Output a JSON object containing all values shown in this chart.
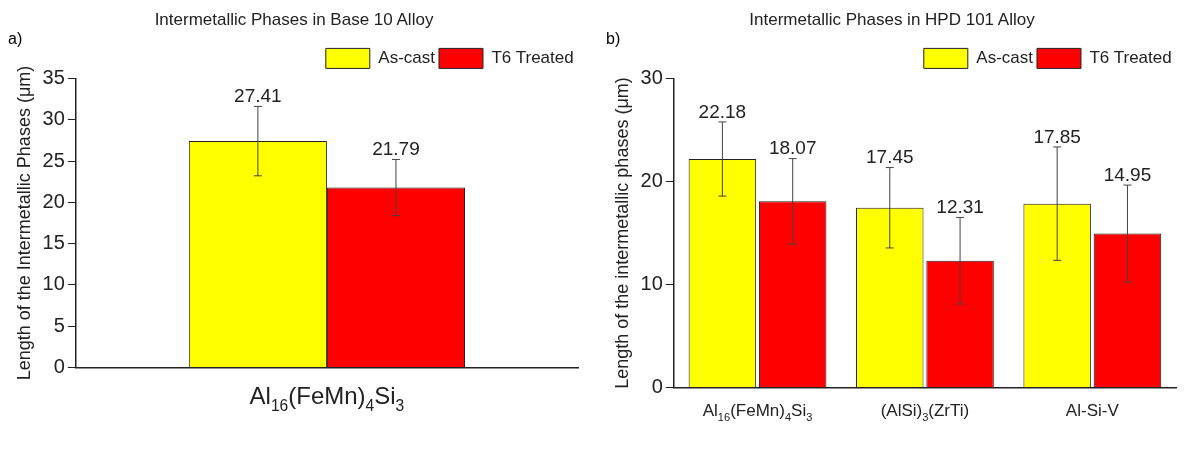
{
  "chart_data": [
    {
      "type": "bar",
      "title": "Intermetallic Phases in Base 10 Alloy",
      "ylabel": "Length of the Intermetallic Phases (μm)",
      "categories": [
        "Al$_{16}$(FeMn)$_{4}$Si$_{3}$"
      ],
      "series": [
        {
          "name": "As-cast",
          "color": "#ffff00",
          "values": [
            27.41
          ],
          "errors": [
            4.2
          ]
        },
        {
          "name": "T6 Treated",
          "color": "#ff0000",
          "values": [
            21.79
          ],
          "errors": [
            3.4
          ]
        }
      ],
      "ylim": [
        0,
        35
      ],
      "yticks": [
        0,
        5,
        10,
        15,
        20,
        25,
        30,
        35
      ],
      "data_labels": true,
      "legend": "top right",
      "grid": false,
      "annotations": [
        "a)"
      ]
    },
    {
      "type": "bar",
      "title": "Intermetallic Phases in HPD 101 Alloy",
      "ylabel": "Length of the intermetallic phases (μm)",
      "categories": [
        "Al$_{16}$(FeMn)$_{4}$Si$_{3}$",
        "(AlSi)$_{3}$(ZrTi)",
        "Al-Si-V"
      ],
      "series": [
        {
          "name": "As-cast",
          "color": "#ffff00",
          "values": [
            22.18,
            17.45,
            17.85
          ],
          "errors": [
            3.6,
            3.9,
            5.5
          ]
        },
        {
          "name": "T6 Treated",
          "color": "#ff0000",
          "values": [
            18.07,
            12.31,
            14.95
          ],
          "errors": [
            4.15,
            4.2,
            4.7
          ]
        }
      ],
      "ylim": [
        0,
        30
      ],
      "yticks": [
        0,
        10,
        20,
        30
      ],
      "data_labels": true,
      "legend": "top right",
      "grid": false,
      "annotations": [
        "b)"
      ]
    }
  ]
}
